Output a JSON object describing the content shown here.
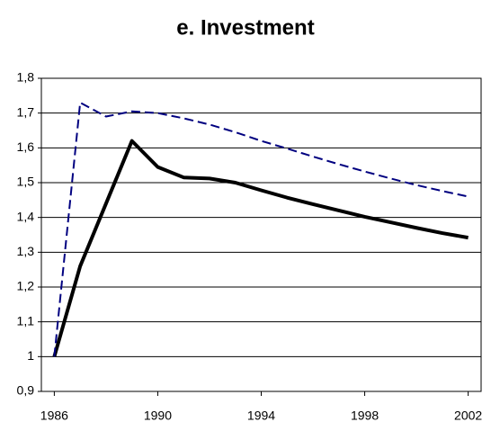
{
  "chart_data": {
    "type": "line",
    "title": "e. Investment",
    "x": [
      1986,
      1987,
      1988,
      1989,
      1990,
      1991,
      1992,
      1993,
      1994,
      1995,
      1996,
      1997,
      1998,
      1999,
      2000,
      2001,
      2002
    ],
    "series": [
      {
        "color": "#000000",
        "style": "solid",
        "values": [
          1.0,
          1.26,
          1.44,
          1.62,
          1.545,
          1.515,
          1.512,
          1.5,
          1.478,
          1.457,
          1.438,
          1.42,
          1.402,
          1.386,
          1.37,
          1.355,
          1.342
        ]
      },
      {
        "color": "#000080",
        "style": "dashed",
        "values": [
          1.0,
          1.73,
          1.69,
          1.705,
          1.7,
          1.685,
          1.667,
          1.645,
          1.62,
          1.598,
          1.575,
          1.553,
          1.532,
          1.512,
          1.493,
          1.476,
          1.46
        ]
      }
    ],
    "xlim": [
      1985.5,
      2002.5
    ],
    "xticks": [
      1986,
      1990,
      1994,
      1998,
      2002
    ],
    "ylim": [
      0.9,
      1.8
    ],
    "yticks": [
      {
        "value": 0.9,
        "label": "0,9"
      },
      1,
      {
        "value": 1.1,
        "label": "1,1"
      },
      {
        "value": 1.2,
        "label": "1,2"
      },
      {
        "value": 1.3,
        "label": "1,3"
      },
      {
        "value": 1.4,
        "label": "1,4"
      },
      {
        "value": 1.5,
        "label": "1,5"
      },
      {
        "value": 1.6,
        "label": "1,6"
      },
      {
        "value": 1.7,
        "label": "1,7"
      },
      {
        "value": 1.8,
        "label": "1,8"
      }
    ],
    "grid": true
  }
}
